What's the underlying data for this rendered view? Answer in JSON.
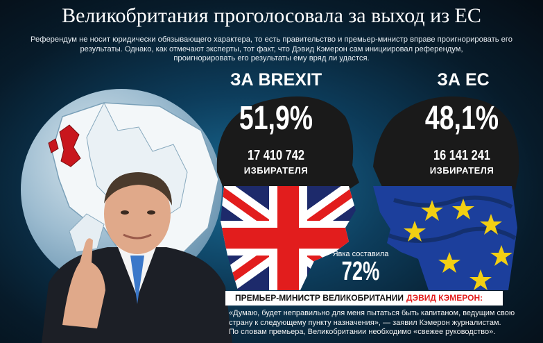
{
  "header": {
    "title": "Великобритания проголосовала за выход из ЕС",
    "subtitle_lines": [
      "Референдум не носит юридически обязывающего характера, то есть правительство и премьер-министр вправе проигнорировать его",
      "результаты. Однако, как отмечают эксперты, тот факт, что Дэвид Кэмерон сам инициировал референдум,",
      "проигнорировать его результаты ему вряд ли удастся."
    ]
  },
  "brexit": {
    "label": "ЗА BREXIT",
    "percent": "51,9%",
    "votes": "17 410 742",
    "voters_label": "ИЗБИРАТЕЛЯ"
  },
  "eu": {
    "label": "ЗА ЕС",
    "percent": "48,1%",
    "votes": "16 141 241",
    "voters_label": "ИЗБИРАТЕЛЯ"
  },
  "turnout": {
    "label": "Явка составила",
    "value": "72%"
  },
  "pm": {
    "caption": "ПРЕМЬЕР-МИНИСТР ВЕЛИКОБРИТАНИИ",
    "name": "ДЭВИД КЭМЕРОН:",
    "quote_lines": [
      "«Думаю, будет неправильно для меня пытаться быть капитаном, ведущим свою",
      "страну к следующему пункту назначения», — заявил Кэмерон журналистам.",
      "По словам премьера, Великобритании необходимо «свежее руководство»."
    ]
  },
  "colors": {
    "brexit_red": "#e21d1d",
    "navy": "#1d2a6b",
    "eu_blue": "#1c3f9c",
    "eu_yellow": "#f2cf13"
  }
}
